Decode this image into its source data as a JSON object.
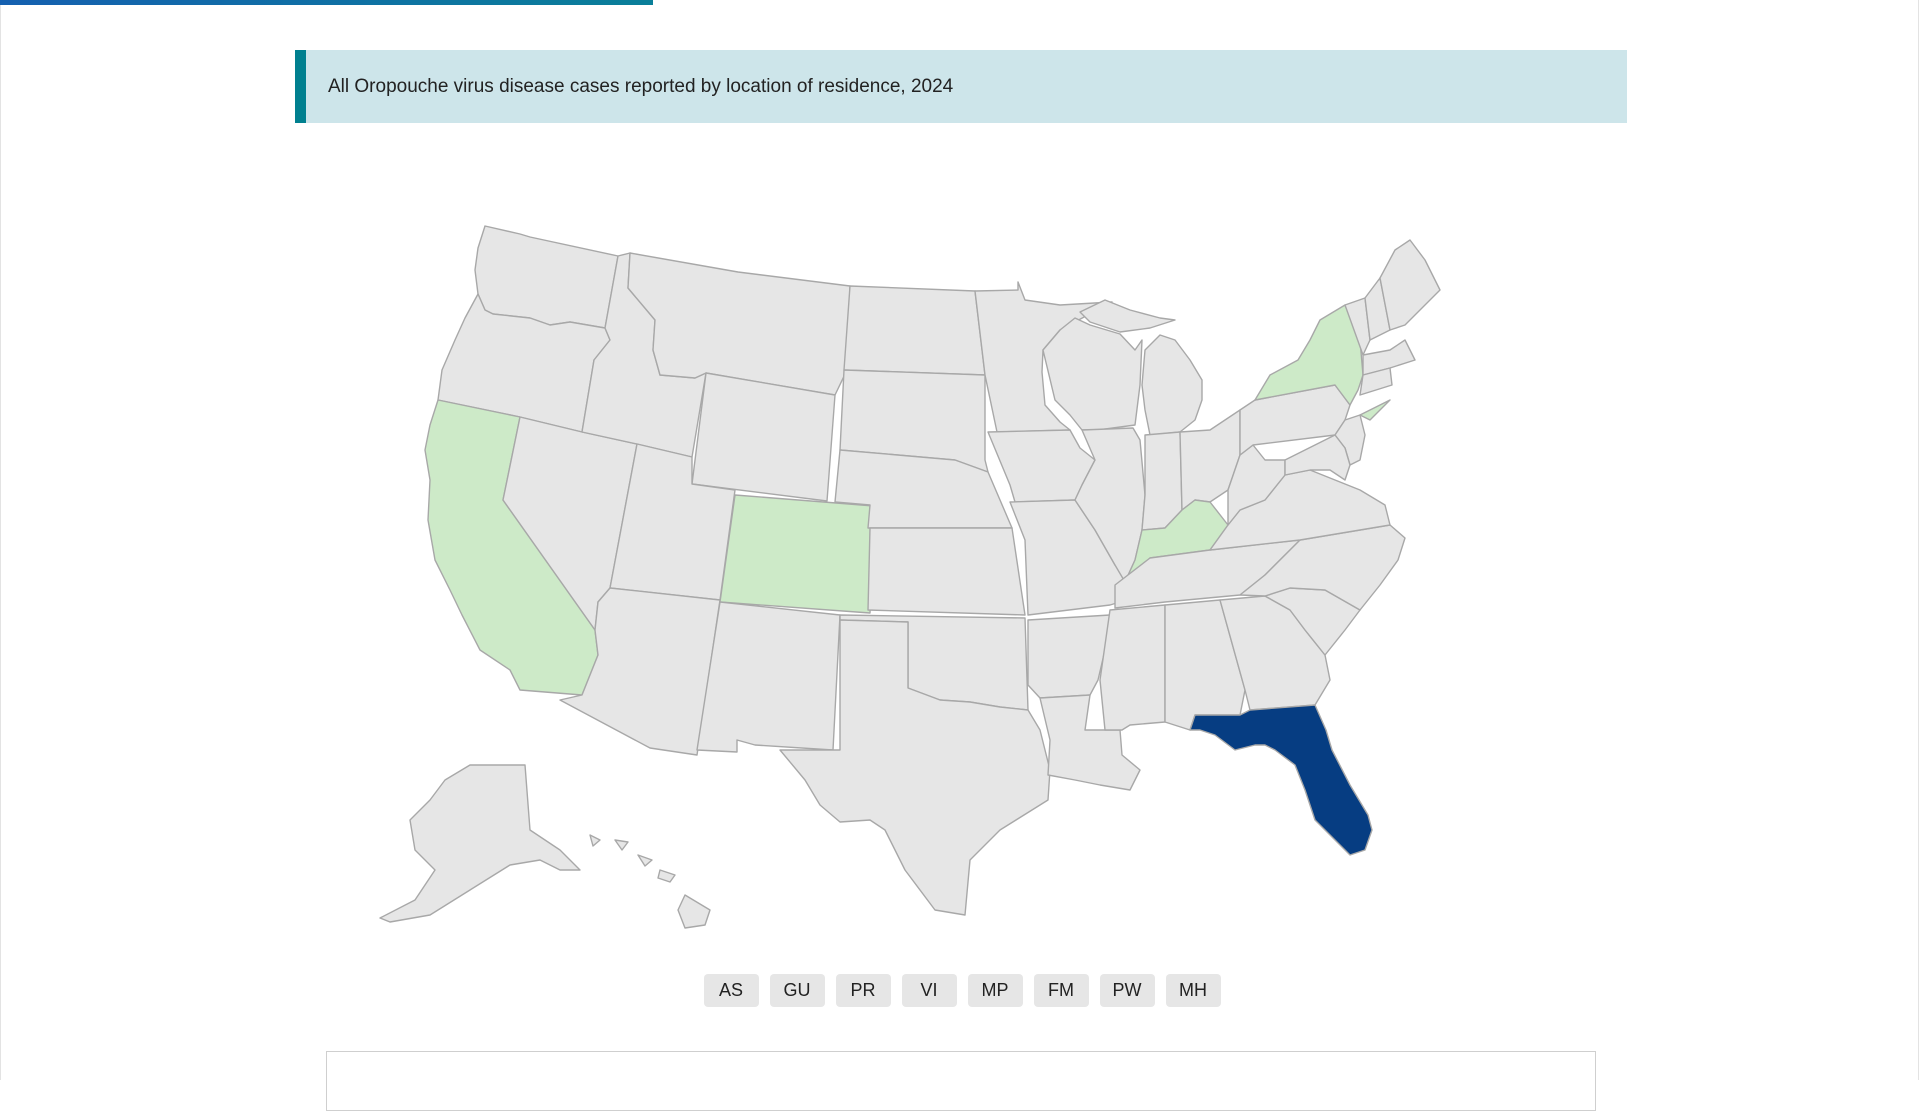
{
  "progress": {
    "fraction": 0.34
  },
  "map": {
    "title": "All Oropouche virus disease cases reported by location of residence, 2024",
    "colors": {
      "none": "#e6e6e6",
      "low": "#cdeac8",
      "high": "#063d82",
      "border": "#a8a8a8"
    },
    "states_with_cases": {
      "CA": "low",
      "CO": "low",
      "KY": "low",
      "NY": "low",
      "FL": "high"
    }
  },
  "territories": [
    "AS",
    "GU",
    "PR",
    "VI",
    "MP",
    "FM",
    "PW",
    "MH"
  ]
}
